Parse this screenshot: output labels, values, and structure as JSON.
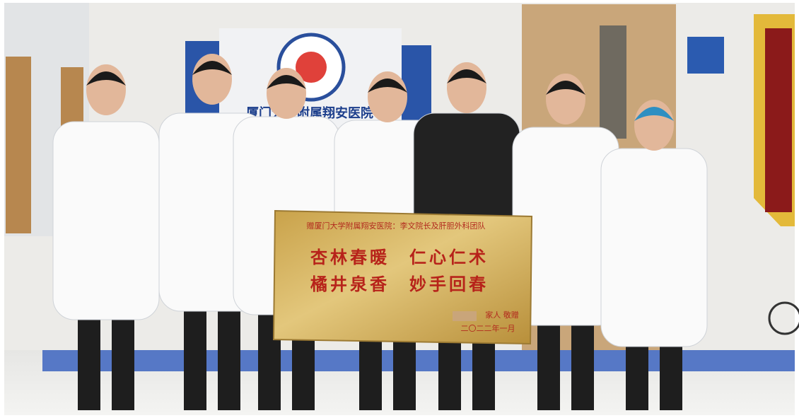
{
  "sign": {
    "hospital_name": "厦门大学附属翔安医院"
  },
  "plaque": {
    "header": "赠厦门大学附属翔安医院：李文院长及肝胆外科团队",
    "lines": [
      "杏林春暖　仁心仁术",
      "橘井泉香　妙手回春"
    ],
    "giver": "家人 敬赠",
    "date": "二〇二二年一月"
  }
}
